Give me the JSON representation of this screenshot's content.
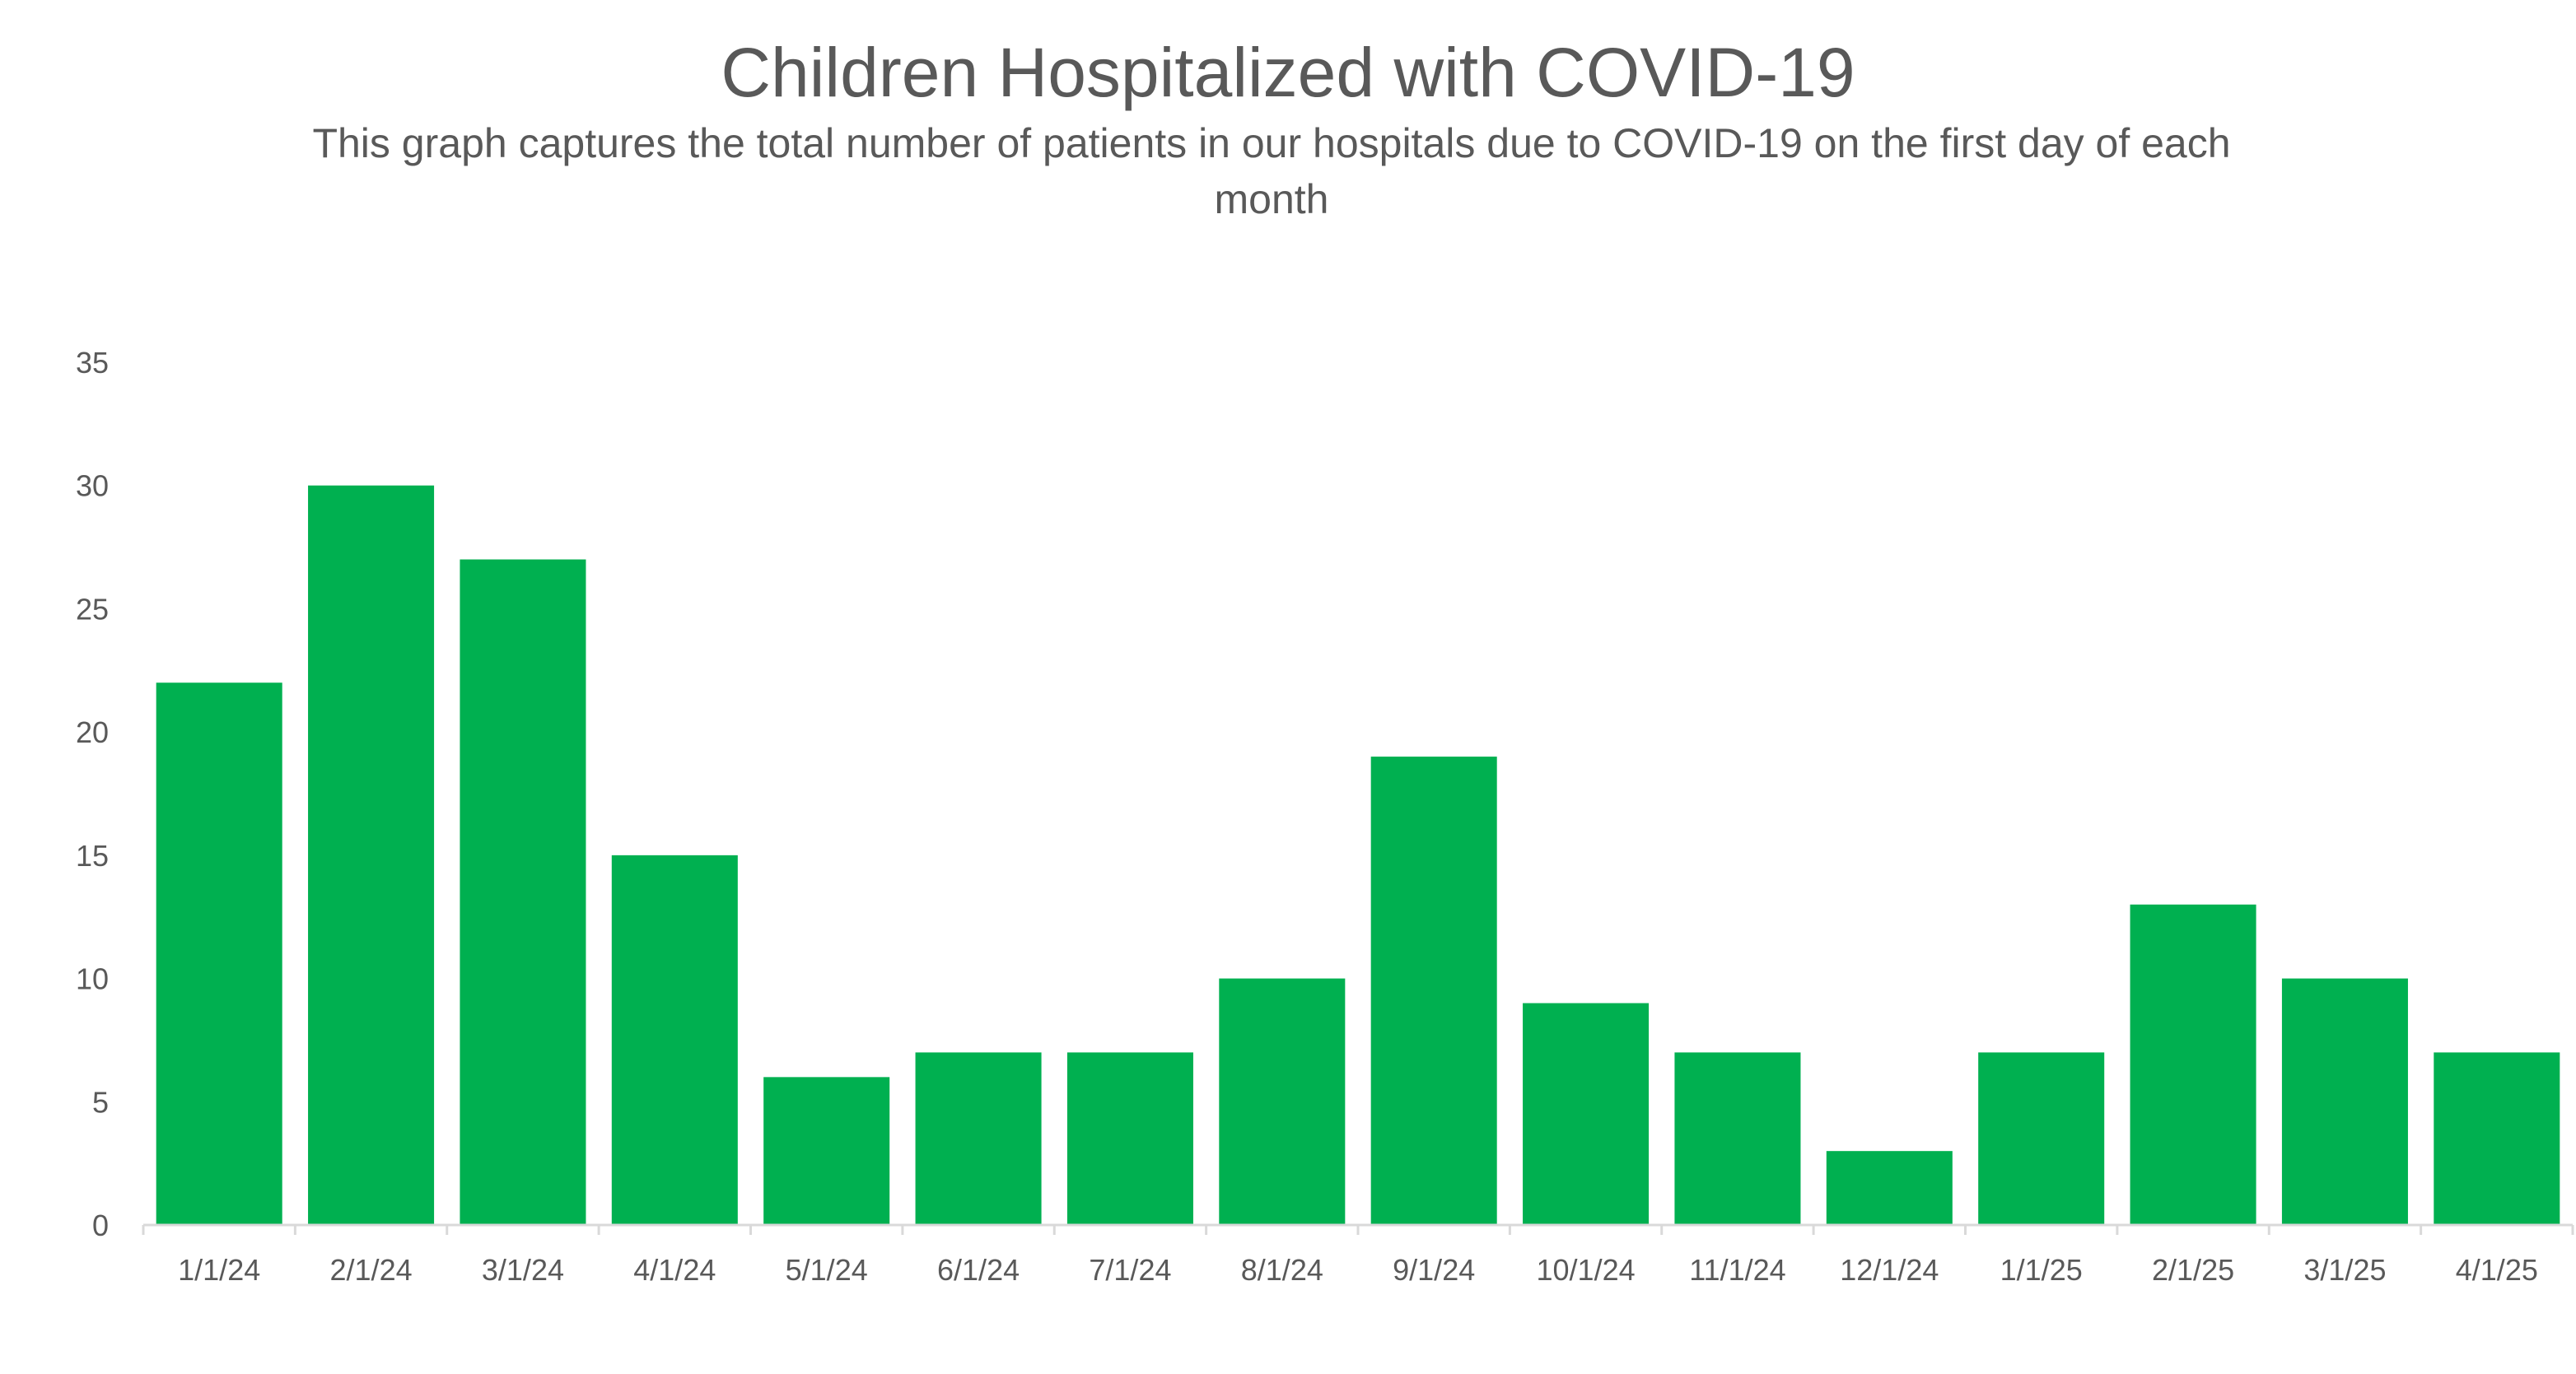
{
  "chart_data": {
    "type": "bar",
    "title": "Children Hospitalized with COVID-19",
    "subtitle": "This graph captures the total number of patients in our hospitals due to COVID-19 on the first day of each month",
    "xlabel": "",
    "ylabel": "",
    "categories": [
      "1/1/24",
      "2/1/24",
      "3/1/24",
      "4/1/24",
      "5/1/24",
      "6/1/24",
      "7/1/24",
      "8/1/24",
      "9/1/24",
      "10/1/24",
      "11/1/24",
      "12/1/24",
      "1/1/25",
      "2/1/25",
      "3/1/25",
      "4/1/25"
    ],
    "values": [
      22,
      30,
      27,
      15,
      6,
      7,
      7,
      10,
      19,
      9,
      7,
      3,
      7,
      13,
      10,
      7
    ],
    "ylim": [
      0,
      35
    ],
    "yticks": [
      0,
      5,
      10,
      15,
      20,
      25,
      30,
      35
    ],
    "grid": false,
    "legend": "none",
    "bar_color": "#00B050",
    "axis_color": "#D9D9D9",
    "text_color": "#595959"
  }
}
